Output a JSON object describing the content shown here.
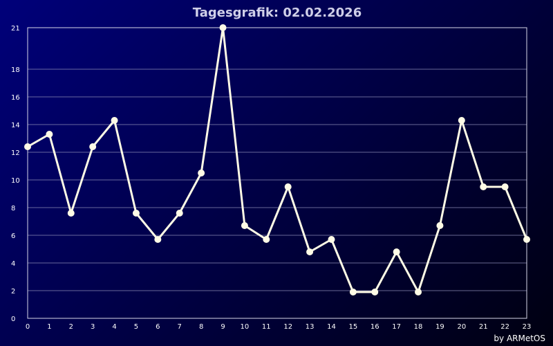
{
  "chart_data": {
    "type": "line",
    "title": "Tagesgrafik: 02.02.2026",
    "xlabel": "",
    "ylabel": "",
    "x": [
      0,
      1,
      2,
      3,
      4,
      5,
      6,
      7,
      8,
      9,
      10,
      11,
      12,
      13,
      14,
      15,
      16,
      17,
      18,
      19,
      20,
      21,
      22,
      23
    ],
    "x_tick_labels": [
      "0",
      "1",
      "2",
      "3",
      "4",
      "5",
      "6",
      "7",
      "8",
      "9",
      "10",
      "11",
      "12",
      "13",
      "14",
      "15",
      "16",
      "17",
      "18",
      "19",
      "20",
      "21",
      "22",
      "23"
    ],
    "y_ticks": [
      0,
      2,
      4,
      6,
      8,
      10,
      12,
      14,
      16,
      18,
      21
    ],
    "ylim": [
      0,
      21
    ],
    "xlim": [
      0,
      23
    ],
    "grid": true,
    "series": [
      {
        "values": [
          12.4,
          13.3,
          7.6,
          12.4,
          14.3,
          7.6,
          5.7,
          7.6,
          10.5,
          21.0,
          6.7,
          5.7,
          9.5,
          4.8,
          5.7,
          1.9,
          1.9,
          4.8,
          1.9,
          6.7,
          14.3,
          9.5,
          9.5,
          5.7
        ],
        "color": "#fffbe6"
      }
    ],
    "credit": "by ARMetOS"
  },
  "colors": {
    "background_start": "#00007a",
    "background_end": "#000010",
    "line": "#fffbe6",
    "grid": "#8c8cb4"
  }
}
